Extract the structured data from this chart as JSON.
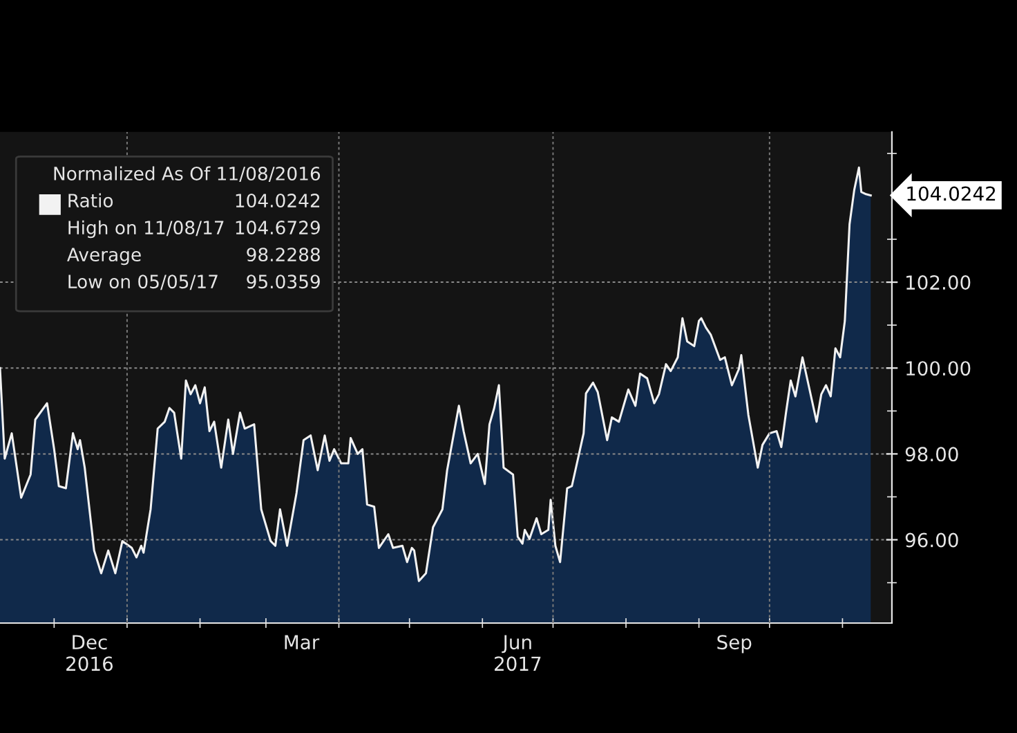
{
  "chart_data": {
    "type": "area",
    "legend_title": "Normalized As Of 11/08/2016",
    "x": [
      "2016-11-08",
      "2016-11-10",
      "2016-11-13",
      "2016-11-17",
      "2016-11-21",
      "2016-11-23",
      "2016-11-28",
      "2016-12-01",
      "2016-12-03",
      "2016-12-06",
      "2016-12-09",
      "2016-12-11",
      "2016-12-12",
      "2016-12-14",
      "2016-12-18",
      "2016-12-21",
      "2016-12-24",
      "2016-12-27",
      "2016-12-30",
      "2017-01-03",
      "2017-01-05",
      "2017-01-07",
      "2017-01-08",
      "2017-01-11",
      "2017-01-14",
      "2017-01-17",
      "2017-01-19",
      "2017-01-21",
      "2017-01-24",
      "2017-01-26",
      "2017-01-28",
      "2017-01-30",
      "2017-02-01",
      "2017-02-03",
      "2017-02-05",
      "2017-02-07",
      "2017-02-10",
      "2017-02-13",
      "2017-02-15",
      "2017-02-18",
      "2017-02-20",
      "2017-02-24",
      "2017-02-27",
      "2017-03-03",
      "2017-03-05",
      "2017-03-07",
      "2017-03-10",
      "2017-03-14",
      "2017-03-17",
      "2017-03-20",
      "2017-03-23",
      "2017-03-26",
      "2017-03-28",
      "2017-03-30",
      "2017-04-02",
      "2017-04-05",
      "2017-04-06",
      "2017-04-09",
      "2017-04-11",
      "2017-04-13",
      "2017-04-16",
      "2017-04-18",
      "2017-04-22",
      "2017-04-24",
      "2017-04-28",
      "2017-04-30",
      "2017-05-02",
      "2017-05-03",
      "2017-05-05",
      "2017-05-08",
      "2017-05-11",
      "2017-05-15",
      "2017-05-17",
      "2017-05-22",
      "2017-05-24",
      "2017-05-27",
      "2017-05-30",
      "2017-06-02",
      "2017-06-04",
      "2017-06-06",
      "2017-06-08",
      "2017-06-10",
      "2017-06-14",
      "2017-06-16",
      "2017-06-18",
      "2017-06-19",
      "2017-06-21",
      "2017-06-24",
      "2017-06-26",
      "2017-06-29",
      "2017-06-30",
      "2017-07-02",
      "2017-07-04",
      "2017-07-07",
      "2017-07-09",
      "2017-07-14",
      "2017-07-15",
      "2017-07-18",
      "2017-07-20",
      "2017-07-24",
      "2017-07-26",
      "2017-07-29",
      "2017-08-02",
      "2017-08-05",
      "2017-08-07",
      "2017-08-10",
      "2017-08-13",
      "2017-08-15",
      "2017-08-18",
      "2017-08-20",
      "2017-08-23",
      "2017-08-25",
      "2017-08-27",
      "2017-08-30",
      "2017-09-01",
      "2017-09-02",
      "2017-09-04",
      "2017-09-06",
      "2017-09-10",
      "2017-09-12",
      "2017-09-15",
      "2017-09-18",
      "2017-09-19",
      "2017-09-22",
      "2017-09-26",
      "2017-09-28",
      "2017-10-01",
      "2017-10-04",
      "2017-10-06",
      "2017-10-08",
      "2017-10-10",
      "2017-10-12",
      "2017-10-15",
      "2017-10-18",
      "2017-10-21",
      "2017-10-23",
      "2017-10-25",
      "2017-10-27",
      "2017-10-29",
      "2017-10-31",
      "2017-11-02",
      "2017-11-04",
      "2017-11-06",
      "2017-11-08",
      "2017-11-09",
      "2017-11-11",
      "2017-11-13"
    ],
    "series": [
      {
        "name": "Ratio",
        "color": "#f2f2f2",
        "values": [
          100.0,
          97.89,
          98.48,
          96.98,
          97.52,
          98.8,
          99.18,
          98.11,
          97.25,
          97.2,
          98.48,
          98.11,
          98.32,
          97.68,
          95.75,
          95.22,
          95.75,
          95.22,
          95.97,
          95.81,
          95.59,
          95.86,
          95.7,
          96.71,
          98.59,
          98.75,
          99.07,
          98.96,
          97.89,
          99.71,
          99.39,
          99.6,
          99.18,
          99.55,
          98.53,
          98.75,
          97.68,
          98.8,
          98.0,
          98.96,
          98.59,
          98.69,
          96.71,
          95.97,
          95.86,
          96.71,
          95.86,
          97.09,
          98.32,
          98.43,
          97.62,
          98.43,
          97.84,
          98.11,
          97.78,
          97.78,
          98.37,
          98.0,
          98.11,
          96.82,
          96.77,
          95.81,
          96.13,
          95.81,
          95.86,
          95.48,
          95.81,
          95.75,
          95.04,
          95.22,
          96.29,
          96.71,
          97.62,
          99.12,
          98.53,
          97.78,
          98.0,
          97.3,
          98.69,
          99.07,
          99.6,
          97.68,
          97.52,
          96.07,
          95.91,
          96.23,
          96.02,
          96.5,
          96.13,
          96.23,
          96.93,
          95.86,
          95.48,
          97.2,
          97.25,
          98.48,
          99.41,
          99.66,
          99.44,
          98.32,
          98.85,
          98.75,
          99.5,
          99.12,
          99.87,
          99.76,
          99.18,
          99.39,
          100.09,
          99.93,
          100.25,
          101.16,
          100.62,
          100.51,
          101.1,
          101.16,
          100.94,
          100.78,
          100.19,
          100.25,
          99.6,
          99.98,
          100.3,
          98.91,
          97.68,
          98.21,
          98.48,
          98.53,
          98.16,
          98.96,
          99.71,
          99.34,
          100.25,
          99.5,
          98.75,
          99.39,
          99.6,
          99.34,
          100.46,
          100.25,
          101.1,
          103.35,
          104.15,
          104.67,
          104.1,
          104.05,
          104.02
        ]
      }
    ],
    "xlim": [
      "2016-11-08",
      "2017-11-22"
    ],
    "xticks": [
      {
        "value": "2016-12-01",
        "label": null
      },
      {
        "value": "2016-12-16",
        "label": "Dec\n2016"
      },
      {
        "value": "2017-01-01",
        "label": null
      },
      {
        "value": "2017-02-01",
        "label": null
      },
      {
        "value": "2017-03-01",
        "label": null
      },
      {
        "value": "2017-03-16",
        "label": "Mar"
      },
      {
        "value": "2017-04-01",
        "label": null
      },
      {
        "value": "2017-05-01",
        "label": null
      },
      {
        "value": "2017-06-01",
        "label": null
      },
      {
        "value": "2017-06-16",
        "label": "Jun\n2017"
      },
      {
        "value": "2017-07-01",
        "label": null
      },
      {
        "value": "2017-08-01",
        "label": null
      },
      {
        "value": "2017-09-01",
        "label": null
      },
      {
        "value": "2017-09-16",
        "label": "Sep"
      },
      {
        "value": "2017-10-01",
        "label": null
      },
      {
        "value": "2017-11-01",
        "label": null
      }
    ],
    "ylim": [
      94.06,
      105.5
    ],
    "yticks": [
      {
        "value": 95,
        "label": null
      },
      {
        "value": 96,
        "label": "96.00"
      },
      {
        "value": 97,
        "label": null
      },
      {
        "value": 98,
        "label": "98.00"
      },
      {
        "value": 99,
        "label": null
      },
      {
        "value": 100,
        "label": "100.00"
      },
      {
        "value": 101,
        "label": null
      },
      {
        "value": 102,
        "label": "102.00"
      },
      {
        "value": 103,
        "label": null
      },
      {
        "value": 105,
        "label": null
      }
    ],
    "grid": "y",
    "ref_lines": [
      {
        "axis": "x",
        "value": "2017-01-01",
        "color": "#7a7a7a",
        "line_style": "dotted"
      },
      {
        "axis": "x",
        "value": "2017-04-01",
        "color": "#7a7a7a",
        "line_style": "dotted"
      },
      {
        "axis": "x",
        "value": "2017-07-01",
        "color": "#7a7a7a",
        "line_style": "dotted"
      },
      {
        "axis": "x",
        "value": "2017-10-01",
        "color": "#7a7a7a",
        "line_style": "dotted"
      }
    ],
    "legend": "top left",
    "annotations": [
      "104.0242",
      "High on 11/08/17",
      "104.6729",
      "Average",
      "98.2288",
      "Low on 05/05/17",
      "95.0359",
      {
        "text": "104.0242",
        "x": "2017-11-13",
        "y": 104.0242
      }
    ]
  }
}
